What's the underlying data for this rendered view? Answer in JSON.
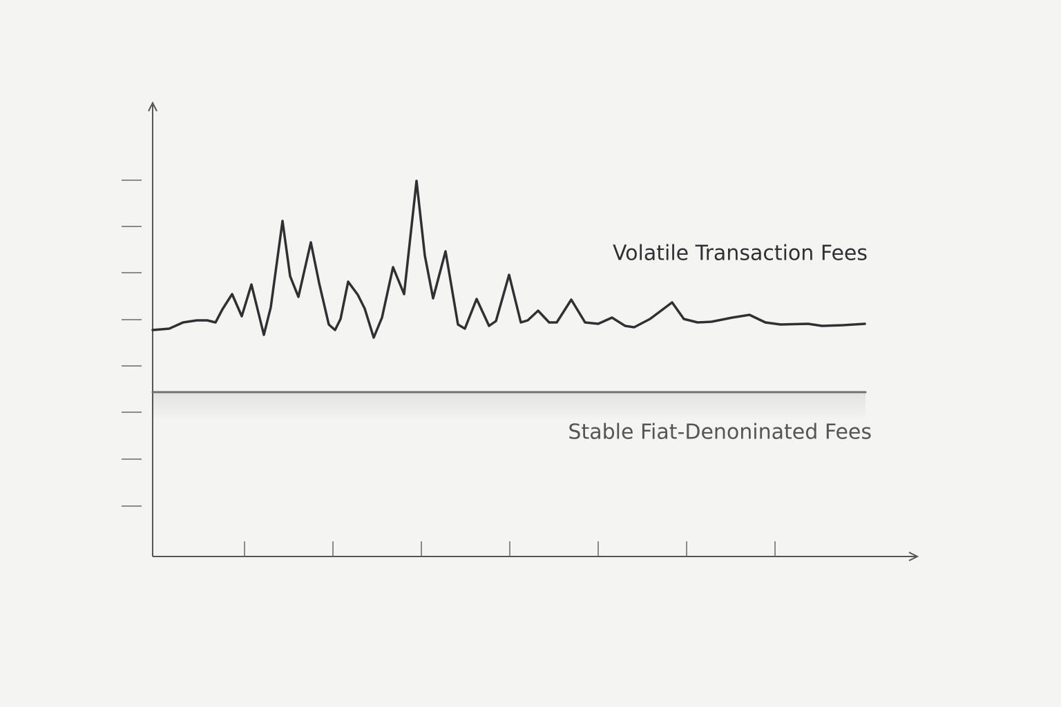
{
  "chart_data": {
    "type": "line",
    "xlim": [
      0,
      110.4
    ],
    "ylim": [
      0,
      65.6
    ],
    "xticks": [
      13.3,
      26.1,
      38.9,
      51.7,
      64.5,
      77.3,
      90.1
    ],
    "yticks": [
      7.3,
      14.1,
      20.9,
      27.6,
      34.3,
      41.1,
      47.8,
      54.5
    ],
    "series": [
      {
        "name": "Volatile Transaction Fees",
        "color": "#2f3033",
        "x": [
          0,
          2.4,
          4.4,
          6.4,
          7.9,
          9.1,
          10.1,
          11.5,
          12.9,
          14.3,
          16.1,
          17.1,
          18.8,
          19.9,
          21.1,
          22.9,
          24.1,
          25.5,
          26.4,
          27.2,
          28.3,
          29.7,
          30.7,
          32,
          33.2,
          34.8,
          36.4,
          38.2,
          39.4,
          40.6,
          42.4,
          44.2,
          45.2,
          46.9,
          48.7,
          49.7,
          51.6,
          53.3,
          54.3,
          55.8,
          57.4,
          58.5,
          60.6,
          62.6,
          64.5,
          66.5,
          68.4,
          69.7,
          72,
          75.2,
          76.9,
          78.9,
          80.9,
          83.9,
          86.4,
          88.7,
          90.9,
          94.9,
          96.9,
          99.9,
          103.1
        ],
        "values": [
          32.8,
          33,
          33.9,
          34.2,
          34.2,
          33.9,
          35.8,
          38,
          34.8,
          39.4,
          32.1,
          36.1,
          48.6,
          40.6,
          37.6,
          45.5,
          39.6,
          33.6,
          32.8,
          34.4,
          39.8,
          37.9,
          35.9,
          31.7,
          34.6,
          41.9,
          38,
          54.4,
          43.6,
          37.4,
          44.2,
          33.6,
          33,
          37.3,
          33.4,
          34.1,
          40.8,
          33.9,
          34.2,
          35.6,
          33.9,
          33.9,
          37.2,
          33.9,
          33.7,
          34.6,
          33.4,
          33.2,
          34.4,
          36.8,
          34.4,
          33.9,
          34,
          34.6,
          35,
          33.9,
          33.6,
          33.7,
          33.4,
          33.5,
          33.7
        ]
      },
      {
        "name": "Stable Fiat-Denoninated Fees",
        "color": "#6e6e70",
        "x": [
          0,
          103.2
        ],
        "values": [
          23.8,
          23.8
        ]
      }
    ]
  }
}
